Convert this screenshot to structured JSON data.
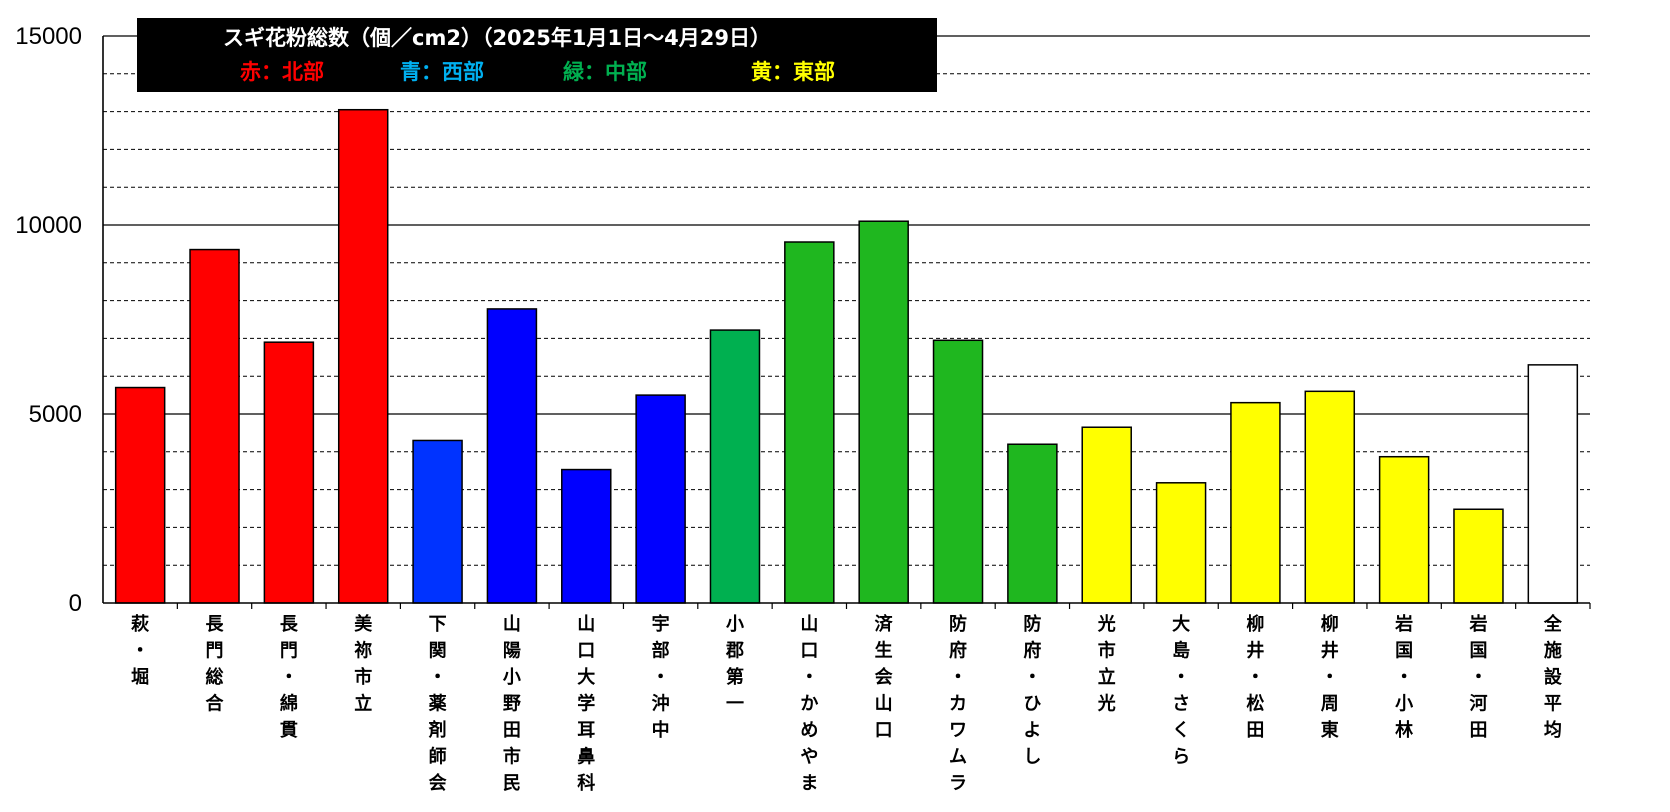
{
  "chart_data": {
    "type": "bar",
    "title": "スギ花粉総数（個／cm2）（2025年1月1日～4月29日）",
    "legend": [
      {
        "label": "赤：北部",
        "color": "#ff0000"
      },
      {
        "label": "青：西部",
        "color": "#00b0f0"
      },
      {
        "label": "緑：中部",
        "color": "#00b050"
      },
      {
        "label": "黄：東部",
        "color": "#ffff00"
      }
    ],
    "categories": [
      "萩・堀",
      "長門総合",
      "長門・綿貫",
      "美祢市立",
      "下関・薬剤師会",
      "山陽小野田市民",
      "山口大学耳鼻科",
      "宇部・沖中",
      "小郡第一",
      "山口・かめやま",
      "済生会山口",
      "防府・カワムラ",
      "防府・ひよし",
      "光市立光",
      "大島・さくら",
      "柳井・松田",
      "柳井・周東",
      "岩国・小林",
      "岩国・河田",
      "全施設平均"
    ],
    "values": [
      5700,
      9350,
      6900,
      13050,
      4300,
      7780,
      3530,
      5500,
      7220,
      9550,
      10100,
      6950,
      4200,
      4650,
      3180,
      5300,
      5600,
      3870,
      2480,
      6300
    ],
    "colors": [
      "#ff0000",
      "#ff0000",
      "#ff0000",
      "#ff0000",
      "#0033ff",
      "#0000ff",
      "#0000ff",
      "#0000ff",
      "#00b050",
      "#1fb71f",
      "#1fb71f",
      "#1fb71f",
      "#1fb71f",
      "#ffff00",
      "#ffff00",
      "#ffff00",
      "#ffff00",
      "#ffff00",
      "#ffff00",
      "#ffffff"
    ],
    "ylim": [
      0,
      15000
    ],
    "yticks": [
      "0",
      "5000",
      "10000",
      "15000"
    ],
    "grid": true,
    "legend_position": "top-left"
  }
}
